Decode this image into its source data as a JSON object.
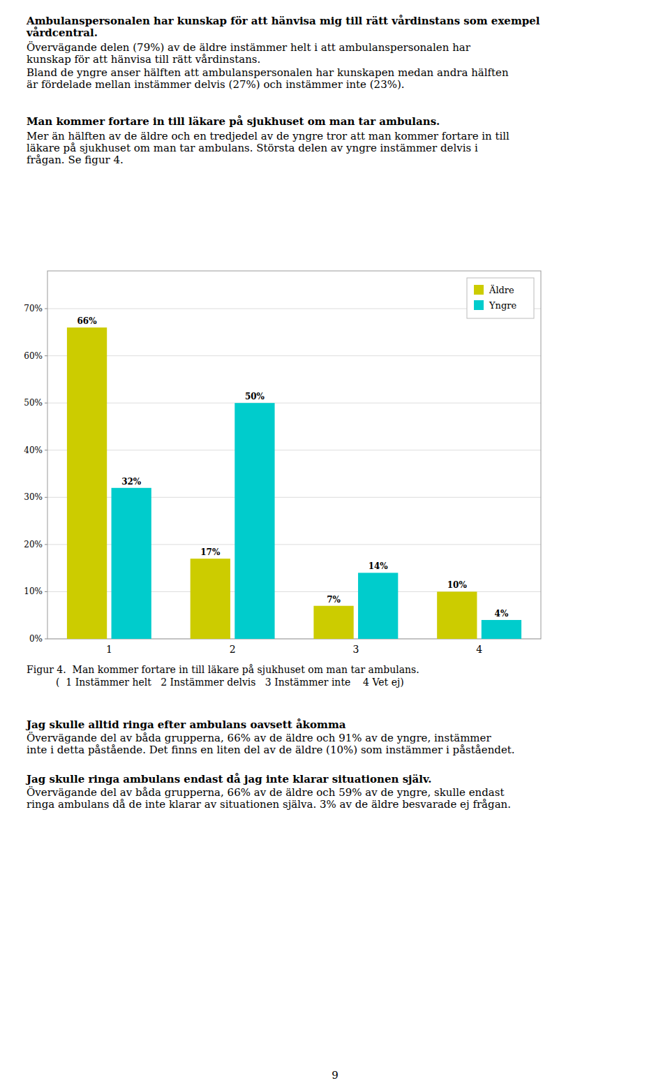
{
  "text_blocks": [
    {
      "heading": [
        "Ambulanspersonalen har kunskap för att hänvisa mig till rätt vårdinstans som exempel",
        "vårdcentral."
      ],
      "paragraphs": [
        [
          "Övervägande delen (79%) av de äldre instämmer helt i att ambulanspersonalen har",
          "kunskap för att hänvisa till rätt vårdinstans."
        ],
        [
          "Bland de yngre anser hälften att ambulanspersonalen har kunskapen medan andra hälften",
          "är fördelade mellan instämmer delvis (27%) och instämmer inte (23%)."
        ]
      ]
    },
    {
      "heading": [
        "Man kommer fortare in till läkare på sjukhuset om man tar ambulans."
      ],
      "paragraphs": [
        [
          "Mer än hälften av de äldre och en tredjedel av de yngre tror att man kommer fortare in till",
          "läkare på sjukhuset om man tar ambulans. Största delen av yngre instämmer delvis i",
          "frågan. Se figur 4."
        ]
      ]
    }
  ],
  "chart_data": {
    "type": "bar",
    "categories": [
      1,
      2,
      3,
      4
    ],
    "series": [
      {
        "name": "Äldre",
        "color": "#cccc00",
        "values": [
          66,
          17,
          7,
          10
        ],
        "value_labels": [
          "66%",
          "17%",
          "7%",
          "10%"
        ]
      },
      {
        "name": "Yngre",
        "color": "#00cccc",
        "values": [
          32,
          50,
          14,
          4
        ],
        "value_labels": [
          "32%",
          "50%",
          "14%",
          "4%"
        ]
      }
    ],
    "ylim": [
      0,
      78
    ],
    "yticks": [
      {
        "value": 0,
        "label": "0%"
      },
      {
        "value": 10,
        "label": "10%"
      },
      {
        "value": 20,
        "label": "20%"
      },
      {
        "value": 30,
        "label": "30%"
      },
      {
        "value": 40,
        "label": "40%"
      },
      {
        "value": 50,
        "label": "50%"
      },
      {
        "value": 60,
        "label": "60%"
      },
      {
        "value": 70,
        "label": "70%"
      }
    ],
    "grid": true,
    "legend": "upper right",
    "data_labels": true
  },
  "caption": [
    "Figur 4.  Man kommer fortare in till läkare på sjukhuset om man tar ambulans.",
    "( 1 Instämmer helt   2 Instämmer delvis   3 Instämmer inte    4 Vet ej)"
  ],
  "text_blocks_after": [
    {
      "heading": [
        "Jag skulle alltid ringa efter ambulans oavsett åkomma"
      ],
      "paragraphs": [
        [
          "Övervägande del av båda grupperna, 66% av de äldre och 91% av de yngre, instämmer",
          "inte i detta påstående. Det finns en liten del av de äldre (10%) som instämmer i påståendet."
        ]
      ]
    },
    {
      "heading": [
        "Jag skulle ringa ambulans endast då jag inte klarar situationen själv."
      ],
      "paragraphs": [
        [
          "Övervägande del av båda grupperna, 66% av de äldre och 59% av de yngre, skulle endast",
          "ringa ambulans då de inte klarar av situationen själva. 3% av de äldre besvarade ej frågan."
        ]
      ]
    }
  ],
  "page_number": 9
}
